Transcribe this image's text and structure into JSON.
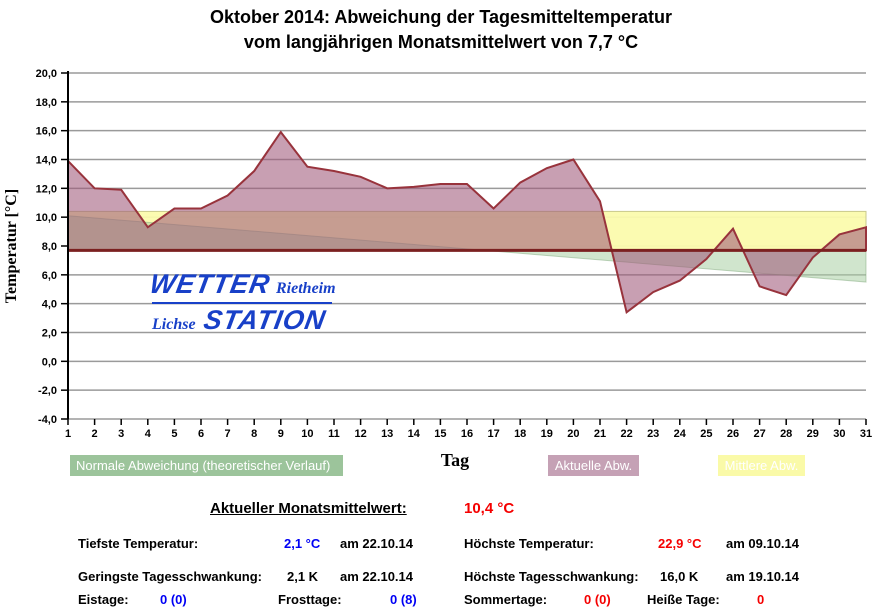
{
  "title": {
    "line1": "Oktober 2014: Abweichung der Tagesmitteltemperatur",
    "line2": "vom langjährigen Monatsmittelwert von 7,7 °C"
  },
  "chart_data": {
    "type": "area",
    "title": "Oktober 2014: Abweichung der Tagesmitteltemperatur vom langjährigen Monatsmittelwert von 7,7 °C",
    "xlabel": "Tag",
    "ylabel": "Temperatur [°C]",
    "ylim": [
      -4,
      20
    ],
    "yticks": [
      20,
      18,
      16,
      14,
      12,
      10,
      8,
      6,
      4,
      2,
      0,
      -2,
      -4
    ],
    "ytick_labels": [
      "20,0",
      "18,0",
      "16,0",
      "14,0",
      "12,0",
      "10,0",
      "8,0",
      "6,0",
      "4,0",
      "2,0",
      "0,0",
      "-2,0",
      "-4,0"
    ],
    "x": [
      1,
      2,
      3,
      4,
      5,
      6,
      7,
      8,
      9,
      10,
      11,
      12,
      13,
      14,
      15,
      16,
      17,
      18,
      19,
      20,
      21,
      22,
      23,
      24,
      25,
      26,
      27,
      28,
      29,
      30,
      31
    ],
    "grid": true,
    "legend_position": "bottom",
    "longterm_mean": 7.7,
    "current_month_mean": 10.4,
    "series": [
      {
        "name": "Aktuelle Abw.",
        "type": "area_vs_baseline",
        "baseline": 7.7,
        "values": [
          13.9,
          12.0,
          11.9,
          9.3,
          10.6,
          10.6,
          11.5,
          13.2,
          15.9,
          13.5,
          13.2,
          12.8,
          12.0,
          12.1,
          12.3,
          12.3,
          10.6,
          12.4,
          13.4,
          14.0,
          11.1,
          3.4,
          4.8,
          5.6,
          7.1,
          9.2,
          5.2,
          4.6,
          7.2,
          8.8,
          9.3
        ],
        "fill": "#A15A7A",
        "fill_opacity": 0.58,
        "stroke": "#98333C"
      },
      {
        "name": "Mittlere Abw.",
        "type": "band",
        "from": 7.7,
        "to": 10.4,
        "fill": "#FBFBAD",
        "stroke": "#C9C98C"
      },
      {
        "name": "Normale Abweichung (theoretischer Verlauf)",
        "type": "linear_wedge_vs_baseline",
        "start_value": 10.1,
        "end_value": 5.5,
        "baseline": 7.7,
        "fill": "#A9CFA4",
        "fill_opacity": 0.55
      }
    ],
    "baseline_color": "#7B2020",
    "grid_color": "#9A9A9A"
  },
  "legend": {
    "normal": {
      "label": "Normale Abweichung (theoretischer Verlauf)",
      "color": "#9CC49B"
    },
    "actual": {
      "label": "Aktuelle Abw.",
      "color": "#C5A1B5"
    },
    "mean": {
      "label": "Mittlere Abw.",
      "color": "#FAFAA8"
    }
  },
  "logo": {
    "top_left": "WETTER",
    "top_right": "Rietheim",
    "bottom_left": "Lichse",
    "bottom_right": "STATION",
    "color": "#1840C8"
  },
  "stats": {
    "heading_label": "Aktueller Monatsmittelwert:",
    "heading_value": "10,4 °C",
    "tiefste_label": "Tiefste Temperatur:",
    "tiefste_value": "2,1 °C",
    "tiefste_date": "am 22.10.14",
    "hoechste_label": "Höchste Temperatur:",
    "hoechste_value": "22,9 °C",
    "hoechste_date": "am 09.10.14",
    "geringste_label": "Geringste Tagesschwankung:",
    "geringste_value": "2,1 K",
    "geringste_date": "am 22.10.14",
    "schwankung_label": "Höchste Tagesschwankung:",
    "schwankung_value": "16,0 K",
    "schwankung_date": "am 19.10.14",
    "eistage_label": "Eistage:",
    "eistage_value": "0 (0)",
    "frosttage_label": "Frosttage:",
    "frosttage_value": "0 (8)",
    "sommertage_label": "Sommertage:",
    "sommertage_value": "0 (0)",
    "heisse_label": "Heiße Tage:",
    "heisse_value": "0"
  }
}
